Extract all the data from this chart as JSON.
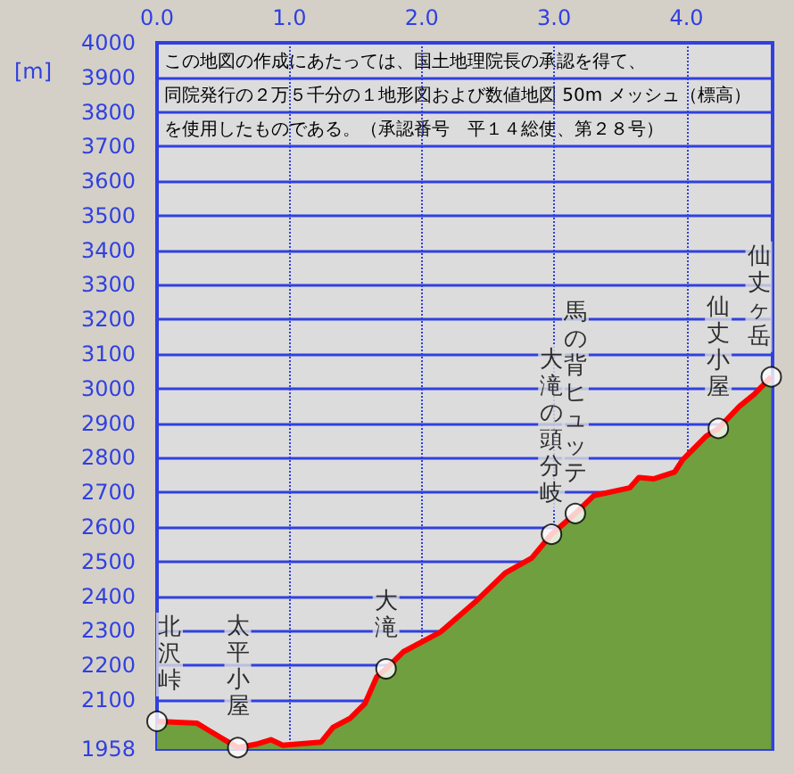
{
  "chart_data": {
    "type": "area",
    "ylabel": "[m]",
    "x": [
      0,
      0.3,
      0.39,
      0.61,
      0.75,
      0.86,
      0.95,
      1.24,
      1.33,
      1.46,
      1.57,
      1.66,
      1.73,
      1.86,
      2.14,
      2.4,
      2.63,
      2.83,
      2.98,
      3.16,
      3.3,
      3.57,
      3.64,
      3.75,
      3.91,
      3.97,
      4.15,
      4.24,
      4.4,
      4.51,
      4.64
    ],
    "series": [
      {
        "color": "#6f9f3f",
        "values": [
          2038,
          2033,
          2012,
          1962,
          1972,
          1985,
          1969,
          1978,
          2021,
          2047,
          2089,
          2167,
          2190,
          2239,
          2296,
          2382,
          2467,
          2510,
          2579,
          2639,
          2691,
          2713,
          2743,
          2739,
          2759,
          2794,
          2863,
          2885,
          2949,
          2983,
          3034
        ]
      }
    ],
    "xlim": [
      0,
      4.65
    ],
    "ylim": [
      1958,
      4000
    ],
    "xticks": [
      {
        "value": 0,
        "label": "0.0"
      },
      {
        "value": 1,
        "label": "1.0"
      },
      {
        "value": 2,
        "label": "2.0"
      },
      {
        "value": 3,
        "label": "3.0"
      },
      {
        "value": 4,
        "label": "4.0"
      }
    ],
    "yticks": [
      1958,
      2100,
      2200,
      2300,
      2400,
      2500,
      2600,
      2700,
      2800,
      2900,
      3000,
      3100,
      3200,
      3300,
      3400,
      3500,
      3600,
      3700,
      3800,
      3900,
      4000
    ],
    "grid": true,
    "annotations": [
      "この地図の作成にあたっては、国土地理院長の承認を得て、",
      "同院発行の２万５千分の１地形図および数値地図 50m メッシュ（標高）",
      "を使用したものである。（承認番号　平１４総使、第２８号）",
      {
        "text": "北沢峠",
        "x": 0,
        "y": 2038
      },
      {
        "text": "太平小屋",
        "x": 0.61,
        "y": 1962
      },
      {
        "text": "大滝",
        "x": 1.73,
        "y": 2190
      },
      {
        "text": "大滝の頭分岐",
        "x": 2.98,
        "y": 2579
      },
      {
        "text": "馬の背ヒュッテ",
        "x": 3.16,
        "y": 2639
      },
      {
        "text": "仙丈小屋",
        "x": 4.24,
        "y": 2885
      },
      {
        "text": "仙丈ヶ岳",
        "x": 4.64,
        "y": 3034
      }
    ]
  }
}
